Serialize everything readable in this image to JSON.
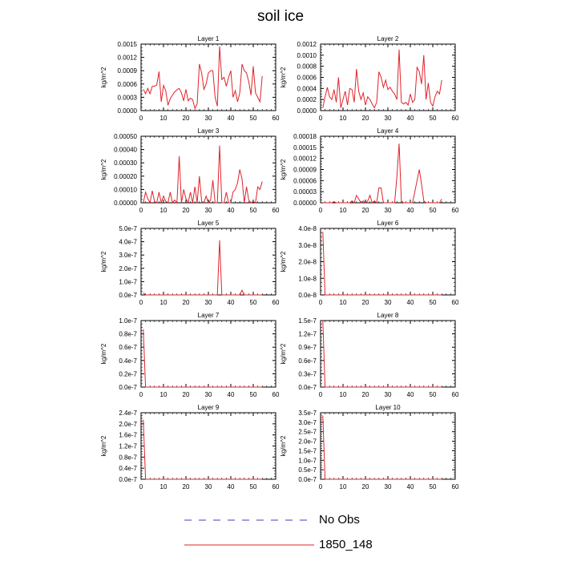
{
  "figure": {
    "title": "soil ice",
    "legend": [
      {
        "label": "No Obs",
        "color": "#3b3fbf",
        "style": "dashed"
      },
      {
        "label": "1850_148",
        "color": "#e0232b",
        "style": "solid"
      }
    ]
  },
  "chart_data": [
    {
      "type": "line",
      "title": "Layer 1",
      "ylabel": "kg/m^2",
      "xlim": [
        0,
        60
      ],
      "ylim": [
        0,
        0.0015
      ],
      "yticks": [
        "0.0000",
        "0.0003",
        "0.0006",
        "0.0009",
        "0.0012",
        "0.0015"
      ],
      "xticks": [
        "0",
        "10",
        "20",
        "30",
        "40",
        "50",
        "60"
      ],
      "series": [
        {
          "name": "1850_148",
          "color": "#e0232b",
          "x": [
            1,
            2,
            3,
            4,
            5,
            6,
            7,
            8,
            9,
            10,
            11,
            12,
            13,
            14,
            15,
            16,
            17,
            18,
            19,
            20,
            21,
            22,
            23,
            24,
            25,
            26,
            27,
            28,
            29,
            30,
            31,
            32,
            33,
            34,
            35,
            36,
            37,
            38,
            39,
            40,
            41,
            42,
            43,
            44,
            45,
            46,
            47,
            48,
            49,
            50,
            51,
            52,
            53,
            54
          ],
          "y": [
            0.00048,
            0.00038,
            0.0005,
            0.00038,
            0.00055,
            0.00055,
            0.00058,
            0.00088,
            0.0002,
            0.00057,
            0.00045,
            0.00012,
            0.00027,
            0.00035,
            0.00042,
            0.00047,
            0.0005,
            0.0004,
            0.00022,
            0.00048,
            0.00022,
            0.00028,
            0.00025,
            5e-05,
            0.00015,
            0.00105,
            0.00085,
            0.00048,
            0.0006,
            0.00085,
            0.0009,
            0.0009,
            0.0003,
            0.0001,
            0.00145,
            0.0007,
            0.00075,
            0.00055,
            0.00075,
            0.0009,
            0.0003,
            0.00045,
            0.0002,
            0.0004,
            0.00105,
            0.0009,
            0.00085,
            0.00065,
            0.00035,
            0.001,
            0.0004,
            0.0003,
            0.0002,
            0.00078
          ]
        }
      ]
    },
    {
      "type": "line",
      "title": "Layer 2",
      "ylabel": "kg/m^2",
      "xlim": [
        0,
        60
      ],
      "ylim": [
        0,
        0.0012
      ],
      "yticks": [
        "0.0000",
        "0.0002",
        "0.0004",
        "0.0006",
        "0.0008",
        "0.0010",
        "0.0012"
      ],
      "xticks": [
        "0",
        "10",
        "20",
        "30",
        "40",
        "50",
        "60"
      ],
      "series": [
        {
          "name": "1850_148",
          "color": "#e0232b",
          "x": [
            1,
            2,
            3,
            4,
            5,
            6,
            7,
            8,
            9,
            10,
            11,
            12,
            13,
            14,
            15,
            16,
            17,
            18,
            19,
            20,
            21,
            22,
            23,
            24,
            25,
            26,
            27,
            28,
            29,
            30,
            31,
            32,
            33,
            34,
            35,
            36,
            37,
            38,
            39,
            40,
            41,
            42,
            43,
            44,
            45,
            46,
            47,
            48,
            49,
            50,
            51,
            52,
            53,
            54
          ],
          "y": [
            5e-05,
            0.00025,
            0.00042,
            0.00025,
            0.0002,
            0.00038,
            0.00015,
            0.0006,
            5e-05,
            0.0002,
            0.00035,
            0.0001,
            0.0004,
            0.00038,
            0.00015,
            0.00075,
            0.00035,
            0.0002,
            0.00032,
            0.0001,
            0.00025,
            0.0002,
            0.00012,
            5e-05,
            0.00015,
            0.0007,
            0.0006,
            0.00042,
            0.00055,
            0.00038,
            0.00042,
            0.00035,
            0.0003,
            0.0002,
            0.0011,
            0.00015,
            0.00012,
            0.00015,
            0.0001,
            0.0003,
            0.00015,
            0.0002,
            0.00078,
            0.0007,
            0.00048,
            0.001,
            0.0002,
            0.0005,
            0.00015,
            8e-05,
            0.00025,
            0.00035,
            0.0003,
            0.00055
          ]
        }
      ]
    },
    {
      "type": "line",
      "title": "Layer 3",
      "ylabel": "kg/m^2",
      "xlim": [
        0,
        60
      ],
      "ylim": [
        0,
        0.0005
      ],
      "yticks": [
        "0.00000",
        "0.00010",
        "0.00020",
        "0.00030",
        "0.00040",
        "0.00050"
      ],
      "xticks": [
        "0",
        "10",
        "20",
        "30",
        "40",
        "50",
        "60"
      ],
      "series": [
        {
          "name": "1850_148",
          "color": "#e0232b",
          "x": [
            1,
            2,
            3,
            4,
            5,
            6,
            7,
            8,
            9,
            10,
            11,
            12,
            13,
            14,
            15,
            16,
            17,
            18,
            19,
            20,
            21,
            22,
            23,
            24,
            25,
            26,
            27,
            28,
            29,
            30,
            31,
            32,
            33,
            34,
            35,
            36,
            37,
            38,
            39,
            40,
            41,
            42,
            43,
            44,
            45,
            46,
            47,
            48,
            49,
            50,
            51,
            52,
            53,
            54
          ],
          "y": [
            0.0,
            8e-05,
            3e-05,
            0.0,
            9e-05,
            1e-05,
            0.0,
            8e-05,
            0.0,
            5e-05,
            1e-05,
            0.0,
            8e-05,
            0.0,
            2e-05,
            0.0,
            0.00035,
            0.0,
            0.0001,
            3e-05,
            0.0,
            8e-05,
            0.0,
            0.00012,
            0.0,
            0.0002,
            1e-05,
            0.0,
            5e-05,
            0.0,
            2e-05,
            0.00017,
            0.0,
            0.0,
            0.00043,
            0.0,
            0.0,
            8e-05,
            0.0,
            0.0,
            8e-05,
            0.0001,
            0.00015,
            0.00025,
            0.00018,
            0.0,
            0.00012,
            2e-05,
            0.0,
            1e-05,
            0.0,
            0.00012,
            0.0001,
            0.00016
          ]
        }
      ]
    },
    {
      "type": "line",
      "title": "Layer 4",
      "ylabel": "kg/m^2",
      "xlim": [
        0,
        60
      ],
      "ylim": [
        0,
        0.00018
      ],
      "yticks": [
        "0.00000",
        "0.00003",
        "0.00006",
        "0.00009",
        "0.00012",
        "0.00015",
        "0.00018"
      ],
      "xticks": [
        "0",
        "10",
        "20",
        "30",
        "40",
        "50",
        "60"
      ],
      "series": [
        {
          "name": "1850_148",
          "color": "#e0232b",
          "x": [
            1,
            2,
            3,
            4,
            5,
            6,
            7,
            8,
            9,
            10,
            11,
            12,
            13,
            14,
            15,
            16,
            17,
            18,
            19,
            20,
            21,
            22,
            23,
            24,
            25,
            26,
            27,
            28,
            29,
            30,
            31,
            32,
            33,
            34,
            35,
            36,
            37,
            38,
            39,
            40,
            41,
            42,
            43,
            44,
            45,
            46,
            47,
            48,
            49,
            50,
            51,
            52,
            53,
            54
          ],
          "y": [
            0.0,
            0.0,
            0.0,
            0.0,
            0.0,
            3e-06,
            0.0,
            0.0,
            0.0,
            0.0,
            0.0,
            0.0,
            0.0,
            5e-06,
            0.0,
            2e-05,
            1e-05,
            0.0,
            5e-06,
            0.0,
            5e-06,
            2e-05,
            0.0,
            5e-06,
            0.0,
            4e-05,
            4e-05,
            0.0,
            0.0,
            0.0,
            0.0,
            0.0,
            0.0,
            7e-05,
            0.00016,
            5e-06,
            0.0,
            0.0,
            0.0,
            0.0,
            0.0,
            3e-05,
            6e-05,
            9e-05,
            5e-05,
            5e-06,
            0.0,
            0.0,
            0.0,
            0.0,
            0.0,
            0.0,
            0.0,
            1e-05
          ]
        }
      ]
    },
    {
      "type": "line",
      "title": "Layer 5",
      "ylabel": "kg/m^2",
      "xlim": [
        0,
        60
      ],
      "ylim": [
        0,
        5e-07
      ],
      "yticks": [
        "0.0e-7",
        "1.0e-7",
        "2.0e-7",
        "3.0e-7",
        "4.0e-7",
        "5.0e-7"
      ],
      "xticks": [
        "0",
        "10",
        "20",
        "30",
        "40",
        "50",
        "60"
      ],
      "series": [
        {
          "name": "1850_148",
          "color": "#e0232b",
          "x": [
            1,
            2,
            3,
            4,
            34,
            35,
            36,
            44,
            45,
            46,
            54
          ],
          "y": [
            1.5e-08,
            0,
            0,
            0,
            0,
            4.1e-07,
            0,
            0,
            3.5e-08,
            0,
            0
          ]
        }
      ]
    },
    {
      "type": "line",
      "title": "Layer 6",
      "ylabel": "kg/m^2",
      "xlim": [
        0,
        60
      ],
      "ylim": [
        0,
        4e-08
      ],
      "yticks": [
        "0.0e-8",
        "1.0e-8",
        "2.0e-8",
        "3.0e-8",
        "4.0e-8"
      ],
      "xticks": [
        "0",
        "10",
        "20",
        "30",
        "40",
        "50",
        "60"
      ],
      "series": [
        {
          "name": "1850_148",
          "color": "#e0232b",
          "x": [
            1,
            2,
            54
          ],
          "y": [
            3.8e-08,
            0,
            0
          ]
        }
      ]
    },
    {
      "type": "line",
      "title": "Layer 7",
      "ylabel": "kg/m^2",
      "xlim": [
        0,
        60
      ],
      "ylim": [
        0,
        1e-07
      ],
      "yticks": [
        "0.0e-7",
        "0.2e-7",
        "0.4e-7",
        "0.6e-7",
        "0.8e-7",
        "1.0e-7"
      ],
      "xticks": [
        "0",
        "10",
        "20",
        "30",
        "40",
        "50",
        "60"
      ],
      "series": [
        {
          "name": "1850_148",
          "color": "#e0232b",
          "x": [
            1,
            2,
            54
          ],
          "y": [
            8.7e-08,
            0,
            0
          ]
        }
      ]
    },
    {
      "type": "line",
      "title": "Layer 8",
      "ylabel": "kg/m^2",
      "xlim": [
        0,
        60
      ],
      "ylim": [
        0,
        1.5e-07
      ],
      "yticks": [
        "0.0e-7",
        "0.3e-7",
        "0.6e-7",
        "0.9e-7",
        "1.2e-7",
        "1.5e-7"
      ],
      "xticks": [
        "0",
        "10",
        "20",
        "30",
        "40",
        "50",
        "60"
      ],
      "series": [
        {
          "name": "1850_148",
          "color": "#e0232b",
          "x": [
            1,
            2,
            54
          ],
          "y": [
            1.5e-07,
            0,
            0
          ]
        }
      ]
    },
    {
      "type": "line",
      "title": "Layer 9",
      "ylabel": "kg/m^2",
      "xlim": [
        0,
        60
      ],
      "ylim": [
        0,
        2.4e-07
      ],
      "yticks": [
        "0.0e-7",
        "0.4e-7",
        "0.8e-7",
        "1.2e-7",
        "1.6e-7",
        "2.0e-7",
        "2.4e-7"
      ],
      "xticks": [
        "0",
        "10",
        "20",
        "30",
        "40",
        "50",
        "60"
      ],
      "series": [
        {
          "name": "1850_148",
          "color": "#e0232b",
          "x": [
            1,
            2,
            54
          ],
          "y": [
            2.15e-07,
            0,
            0
          ]
        }
      ]
    },
    {
      "type": "line",
      "title": "Layer 10",
      "ylabel": "kg/m^2",
      "xlim": [
        0,
        60
      ],
      "ylim": [
        0,
        3.5e-07
      ],
      "yticks": [
        "0.0e-7",
        "0.5e-7",
        "1.0e-7",
        "1.5e-7",
        "2.0e-7",
        "2.5e-7",
        "3.0e-7",
        "3.5e-7"
      ],
      "xticks": [
        "0",
        "10",
        "20",
        "30",
        "40",
        "50",
        "60"
      ],
      "series": [
        {
          "name": "1850_148",
          "color": "#e0232b",
          "x": [
            1,
            2,
            54
          ],
          "y": [
            3.35e-07,
            0,
            0
          ]
        }
      ]
    }
  ]
}
